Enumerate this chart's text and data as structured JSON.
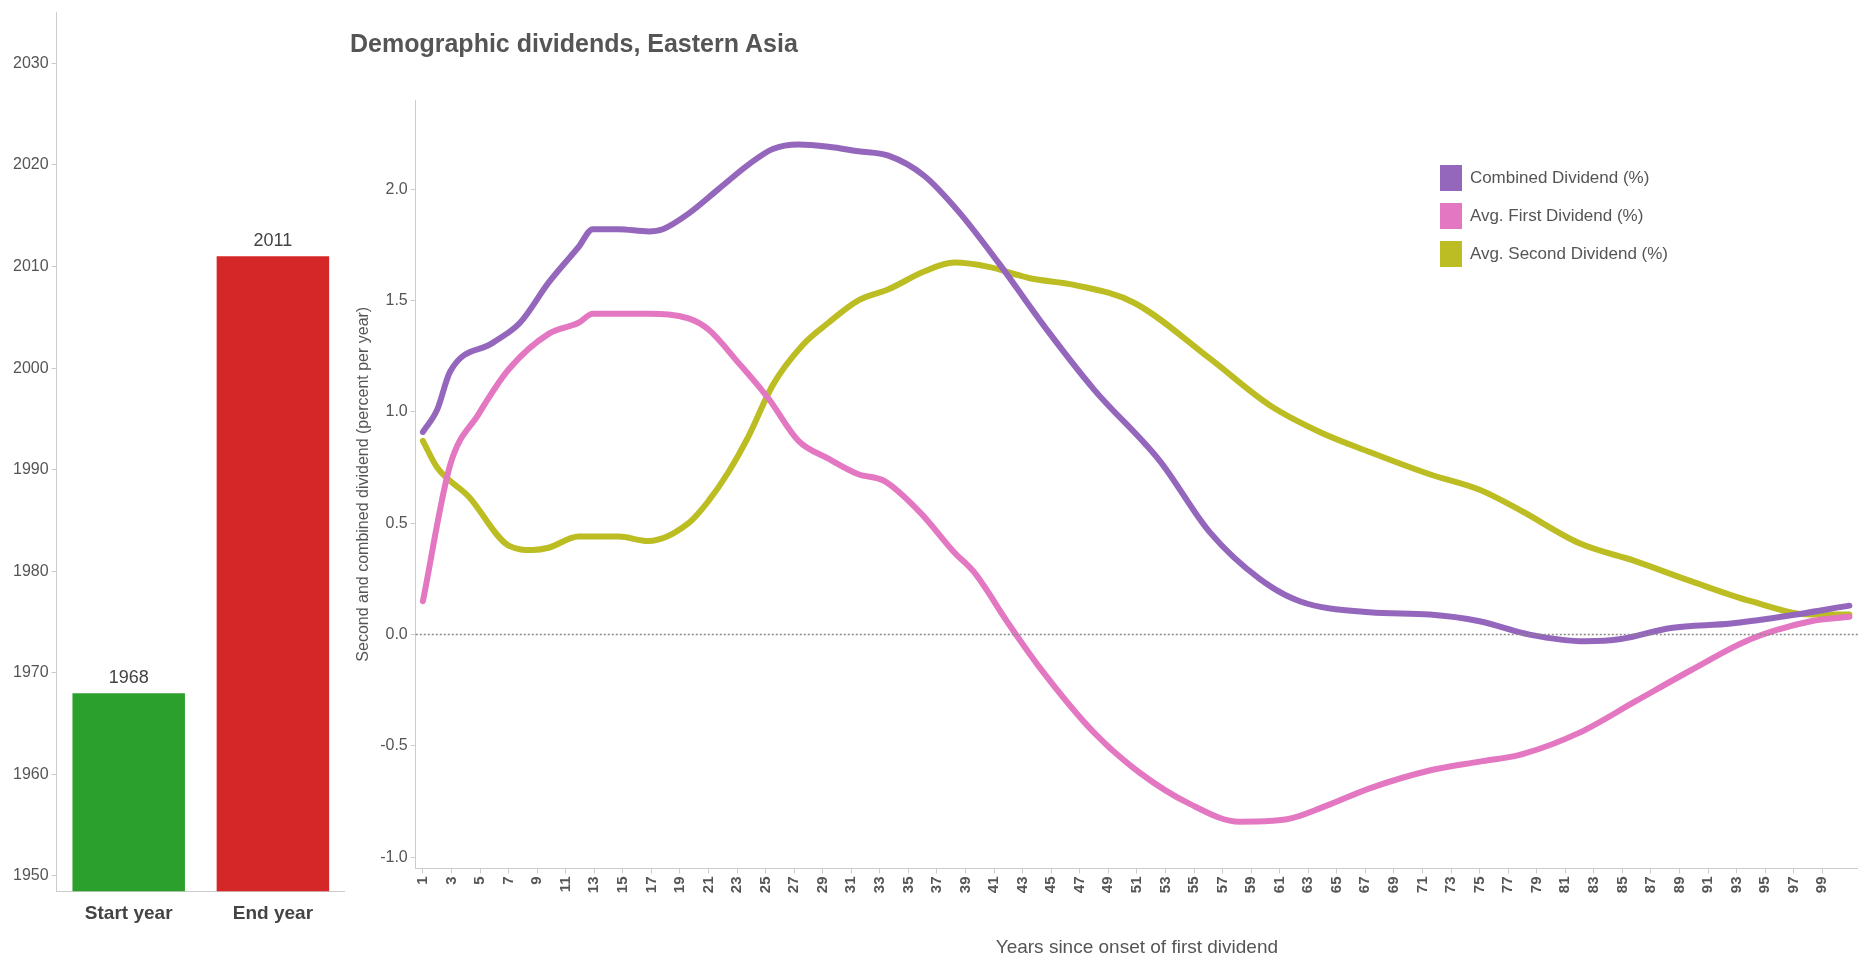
{
  "chart_data": [
    {
      "type": "bar",
      "categories": [
        "Start year",
        "End year"
      ],
      "values": [
        1968,
        2011
      ],
      "colors": [
        "#2ca02c",
        "#d62728"
      ],
      "ylim": [
        1948.5,
        2035
      ],
      "yticks": [
        1950,
        1960,
        1970,
        1980,
        1990,
        2000,
        2010,
        2020,
        2030
      ],
      "data_labels": true
    },
    {
      "type": "line",
      "title": "Demographic dividends, Eastern Asia",
      "xlabel": "Years since onset of first dividend",
      "ylabel": "Second and combined dividend (percent per year)",
      "xlim": [
        0.5,
        101.5
      ],
      "xticks": [
        1,
        3,
        5,
        7,
        9,
        11,
        13,
        15,
        17,
        19,
        21,
        23,
        25,
        27,
        29,
        31,
        33,
        35,
        37,
        39,
        41,
        43,
        45,
        47,
        49,
        51,
        53,
        55,
        57,
        59,
        61,
        63,
        65,
        67,
        69,
        71,
        73,
        75,
        77,
        79,
        81,
        83,
        85,
        87,
        89,
        91,
        93,
        95,
        97,
        99
      ],
      "ylim": [
        -1.05,
        2.4
      ],
      "yticks": [
        {
          "value": -1,
          "label": "-1.0"
        },
        {
          "value": -0.5,
          "label": "-0.5"
        },
        {
          "value": 0,
          "label": "0.0"
        },
        {
          "value": 0.5,
          "label": "0.5"
        },
        {
          "value": 1,
          "label": "1.0"
        },
        {
          "value": 1.5,
          "label": "1.5"
        },
        {
          "value": 2,
          "label": "2.0"
        }
      ],
      "legend": "top right",
      "marker": "none",
      "line_style": "solid",
      "ref_lines": [
        {
          "axis": "y",
          "value": 0,
          "color": "#888888",
          "line_style": "dotted"
        }
      ],
      "series": [
        {
          "name": "Combined Dividend (%)",
          "color": "#9467bd",
          "x": [
            1,
            2,
            2.9,
            5.9,
            7.8,
            9.8,
            11.9,
            12.9,
            14.7,
            16.8,
            17.8,
            19.6,
            21.7,
            23.8,
            25.5,
            27.3,
            29.4,
            31.5,
            33.6,
            36.1,
            38.5,
            41.3,
            44.8,
            48,
            52.6,
            56.1,
            59.6,
            62.4,
            67.3,
            71.5,
            75,
            78.5,
            82.4,
            84.9,
            88.4,
            92.6,
            96.1,
            100.9
          ],
          "values": [
            0.91,
            1.01,
            1.18,
            1.31,
            1.4,
            1.58,
            1.74,
            1.82,
            1.82,
            1.81,
            1.82,
            1.89,
            2.0,
            2.11,
            2.18,
            2.2,
            2.19,
            2.17,
            2.15,
            2.06,
            1.9,
            1.67,
            1.36,
            1.1,
            0.78,
            0.46,
            0.25,
            0.15,
            0.1,
            0.09,
            0.06,
            0,
            -0.03,
            -0.02,
            0.03,
            0.05,
            0.08,
            0.13
          ]
        },
        {
          "name": "Avg. First Dividend (%)",
          "color": "#e377c2",
          "x": [
            1,
            2.9,
            4.9,
            7,
            9.8,
            11.9,
            12.9,
            16.8,
            19.6,
            21,
            23.1,
            25.2,
            27.3,
            29.4,
            31.5,
            33.3,
            35.8,
            38.2,
            39.6,
            42,
            44.1,
            48,
            51.2,
            54.7,
            58.2,
            61.4,
            64.2,
            67.3,
            71.5,
            75,
            77.8,
            82,
            85.9,
            89.8,
            94,
            98.2,
            100.9
          ],
          "values": [
            0.15,
            0.76,
            0.99,
            1.19,
            1.35,
            1.4,
            1.44,
            1.44,
            1.42,
            1.37,
            1.22,
            1.06,
            0.87,
            0.79,
            0.72,
            0.69,
            0.55,
            0.37,
            0.28,
            0.05,
            -0.14,
            -0.44,
            -0.62,
            -0.76,
            -0.84,
            -0.83,
            -0.77,
            -0.69,
            -0.61,
            -0.57,
            -0.54,
            -0.44,
            -0.3,
            -0.16,
            -0.02,
            0.06,
            0.08
          ]
        },
        {
          "name": "Avg. Second Dividend (%)",
          "color": "#bcbd22",
          "x": [
            1,
            2,
            4.2,
            7,
            8.7,
            9.8,
            11.9,
            14.7,
            16.8,
            19.6,
            21,
            22.4,
            23.8,
            25.5,
            27.6,
            29.4,
            31.5,
            33.6,
            36.1,
            38.2,
            40.7,
            43.5,
            46.6,
            50.8,
            56.1,
            60.3,
            63.8,
            67.3,
            71.5,
            75,
            77.8,
            82,
            85.9,
            89.8,
            94,
            98.2,
            100.9
          ],
          "values": [
            0.87,
            0.75,
            0.62,
            0.4,
            0.38,
            0.39,
            0.44,
            0.44,
            0.42,
            0.5,
            0.6,
            0.73,
            0.89,
            1.12,
            1.3,
            1.4,
            1.5,
            1.55,
            1.63,
            1.67,
            1.65,
            1.6,
            1.57,
            1.49,
            1.24,
            1.03,
            0.91,
            0.82,
            0.72,
            0.65,
            0.56,
            0.41,
            0.33,
            0.24,
            0.15,
            0.09,
            0.09
          ]
        }
      ]
    }
  ]
}
